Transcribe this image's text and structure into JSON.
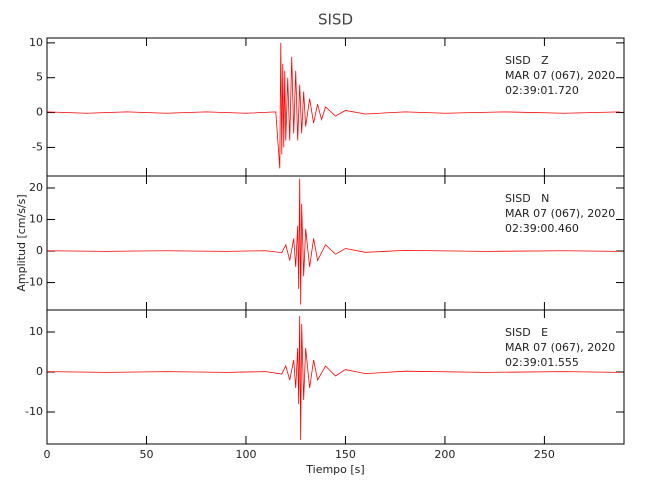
{
  "chart_data": [
    {
      "type": "line",
      "title": "SISD",
      "annotations": [
        "SISD   Z",
        "MAR 07 (067), 2020",
        "02:39:01.720"
      ],
      "color": "#ff0000",
      "xlim": [
        0,
        290
      ],
      "ylim": [
        -9.1,
        10.7
      ],
      "xticks": [
        0,
        50,
        100,
        150,
        200,
        250
      ],
      "yticks": [
        -5,
        0,
        5,
        10
      ],
      "x": [
        0,
        20,
        40,
        60,
        80,
        100,
        115,
        117,
        117.5,
        118,
        118.5,
        119,
        119.5,
        120,
        121,
        122,
        123,
        124,
        125,
        126,
        127,
        128,
        129,
        130,
        132,
        134,
        136,
        138,
        140,
        145,
        150,
        160,
        180,
        200,
        230,
        260,
        288
      ],
      "values": [
        0.1,
        -0.1,
        0.1,
        -0.1,
        0.1,
        -0.1,
        0.1,
        -8,
        10,
        -6,
        7,
        -5,
        6,
        -4,
        5,
        -4,
        8,
        -3,
        6,
        -4,
        4,
        -3,
        3,
        -2,
        2,
        -1.5,
        1.2,
        -1,
        0.8,
        -0.5,
        0.3,
        -0.2,
        0.1,
        -0.1,
        0.1,
        -0.1,
        0.1
      ]
    },
    {
      "type": "line",
      "ylabel": "Amplitud [cm/s/s]",
      "annotations": [
        "SISD   N",
        "MAR 07 (067), 2020",
        "02:39:00.460"
      ],
      "color": "#ff0000",
      "xlim": [
        0,
        290
      ],
      "ylim": [
        -18.7,
        23.8
      ],
      "xticks": [
        0,
        50,
        100,
        150,
        200,
        250
      ],
      "yticks": [
        -10,
        0,
        10,
        20
      ],
      "x": [
        0,
        30,
        60,
        90,
        110,
        118,
        120,
        122,
        124,
        125,
        126,
        126.5,
        127,
        127.5,
        128,
        129,
        130,
        132,
        134,
        136,
        140,
        145,
        150,
        160,
        180,
        220,
        260,
        288
      ],
      "values": [
        0.1,
        -0.1,
        0.1,
        -0.1,
        0.1,
        -0.5,
        2,
        -3,
        4,
        -5,
        8,
        -12,
        23,
        -17,
        15,
        -8,
        7,
        -5,
        4,
        -3,
        2,
        -1,
        0.8,
        -0.4,
        0.2,
        -0.1,
        0.1,
        -0.1
      ]
    },
    {
      "type": "line",
      "xlabel": "Tiempo [s]",
      "annotations": [
        "SISD   E",
        "MAR 07 (067), 2020",
        "02:39:01.555"
      ],
      "color": "#ff0000",
      "xlim": [
        0,
        290
      ],
      "ylim": [
        -18,
        15.5
      ],
      "xticks": [
        0,
        50,
        100,
        150,
        200,
        250
      ],
      "yticks": [
        -10,
        0,
        10
      ],
      "x": [
        0,
        30,
        60,
        90,
        110,
        118,
        120,
        122,
        124,
        125,
        126,
        126.5,
        127,
        127.5,
        128,
        129,
        130,
        132,
        134,
        136,
        140,
        145,
        150,
        160,
        180,
        220,
        260,
        288
      ],
      "values": [
        0.1,
        -0.1,
        0.1,
        -0.1,
        0.1,
        -0.5,
        1.5,
        -2,
        3,
        -4,
        6,
        -8,
        14,
        -17,
        12,
        -7,
        6,
        -4,
        3,
        -2,
        1.5,
        -1,
        0.6,
        -0.4,
        0.2,
        -0.1,
        0.1,
        -0.1
      ]
    }
  ]
}
